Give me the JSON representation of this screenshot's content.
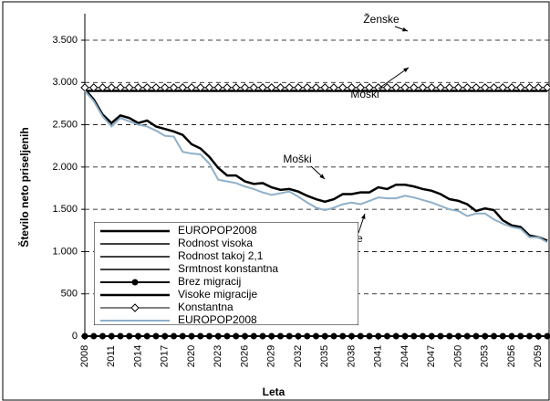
{
  "chart_data": {
    "type": "line",
    "y_label": "Število neto priseljenih",
    "x_label": "Leta",
    "xlim": [
      2008,
      2060
    ],
    "xticks": [
      2008,
      2011,
      2014,
      2017,
      2020,
      2023,
      2026,
      2029,
      2032,
      2035,
      2038,
      2041,
      2044,
      2047,
      2050,
      2053,
      2056,
      2059
    ],
    "ylim": [
      0,
      3500
    ],
    "yticks": [
      {
        "value": 0,
        "label": "0"
      },
      {
        "value": 500,
        "label": "500"
      },
      {
        "value": 1000,
        "label": "1.000"
      },
      {
        "value": 1500,
        "label": "1.500"
      },
      {
        "value": 2000,
        "label": "2.000"
      },
      {
        "value": 2500,
        "label": "2.500"
      },
      {
        "value": 3000,
        "label": "3.000"
      },
      {
        "value": 3500,
        "label": "3.500"
      }
    ],
    "grid": true,
    "legend": "lower left",
    "annotations": [
      "Ženske",
      "Moški",
      "Moški",
      "Ženske"
    ],
    "x": [
      2008,
      2009,
      2010,
      2011,
      2012,
      2013,
      2014,
      2015,
      2016,
      2017,
      2018,
      2019,
      2020,
      2021,
      2022,
      2023,
      2024,
      2025,
      2026,
      2027,
      2028,
      2029,
      2030,
      2031,
      2032,
      2033,
      2034,
      2035,
      2036,
      2037,
      2038,
      2039,
      2040,
      2041,
      2042,
      2043,
      2044,
      2045,
      2046,
      2047,
      2048,
      2049,
      2050,
      2051,
      2052,
      2053,
      2054,
      2055,
      2056,
      2057,
      2058,
      2059,
      2060
    ],
    "series": [
      {
        "name": "EUROPOP2008",
        "color": "#000000",
        "width": 2.5,
        "marker": null,
        "values": [
          2920,
          2800,
          2620,
          2520,
          2610,
          2580,
          2520,
          2550,
          2480,
          2450,
          2420,
          2380,
          2270,
          2220,
          2120,
          1990,
          1900,
          1900,
          1830,
          1800,
          1810,
          1760,
          1730,
          1740,
          1710,
          1660,
          1620,
          1590,
          1620,
          1680,
          1680,
          1700,
          1700,
          1760,
          1740,
          1790,
          1790,
          1770,
          1740,
          1720,
          1680,
          1620,
          1600,
          1560,
          1480,
          1510,
          1490,
          1370,
          1310,
          1290,
          1190,
          1170,
          1130
        ]
      },
      {
        "name": "Rodnost visoka",
        "color": "#000000",
        "width": 1.5,
        "marker": null,
        "values": [
          2920,
          2800,
          2620,
          2520,
          2610,
          2580,
          2520,
          2550,
          2480,
          2450,
          2420,
          2380,
          2270,
          2220,
          2120,
          1990,
          1900,
          1900,
          1830,
          1800,
          1810,
          1760,
          1730,
          1740,
          1710,
          1660,
          1620,
          1590,
          1620,
          1680,
          1680,
          1700,
          1700,
          1760,
          1740,
          1790,
          1790,
          1770,
          1740,
          1720,
          1680,
          1620,
          1600,
          1560,
          1480,
          1510,
          1490,
          1370,
          1310,
          1290,
          1190,
          1170,
          1130
        ]
      },
      {
        "name": "Rodnost takoj 2,1",
        "color": "#000000",
        "width": 1.5,
        "marker": null,
        "values": [
          2920,
          2800,
          2620,
          2520,
          2610,
          2580,
          2520,
          2550,
          2480,
          2450,
          2420,
          2380,
          2270,
          2220,
          2120,
          1990,
          1900,
          1900,
          1830,
          1800,
          1810,
          1760,
          1730,
          1740,
          1710,
          1660,
          1620,
          1590,
          1620,
          1680,
          1680,
          1700,
          1700,
          1760,
          1740,
          1790,
          1790,
          1770,
          1740,
          1720,
          1680,
          1620,
          1600,
          1560,
          1480,
          1510,
          1490,
          1370,
          1310,
          1290,
          1190,
          1170,
          1130
        ]
      },
      {
        "name": "Srmtnost konstantna",
        "color": "#000000",
        "width": 1.5,
        "marker": null,
        "values": [
          2920,
          2800,
          2620,
          2520,
          2610,
          2580,
          2520,
          2550,
          2480,
          2450,
          2420,
          2380,
          2270,
          2220,
          2120,
          1990,
          1900,
          1900,
          1830,
          1800,
          1810,
          1760,
          1730,
          1740,
          1710,
          1660,
          1620,
          1590,
          1620,
          1680,
          1680,
          1700,
          1700,
          1760,
          1740,
          1790,
          1790,
          1770,
          1740,
          1720,
          1680,
          1620,
          1600,
          1560,
          1480,
          1510,
          1490,
          1370,
          1310,
          1290,
          1190,
          1170,
          1130
        ]
      },
      {
        "name": "Brez migracij",
        "color": "#000000",
        "width": 2,
        "marker": "circle",
        "values": [
          0,
          0,
          0,
          0,
          0,
          0,
          0,
          0,
          0,
          0,
          0,
          0,
          0,
          0,
          0,
          0,
          0,
          0,
          0,
          0,
          0,
          0,
          0,
          0,
          0,
          0,
          0,
          0,
          0,
          0,
          0,
          0,
          0,
          0,
          0,
          0,
          0,
          0,
          0,
          0,
          0,
          0,
          0,
          0,
          0,
          0,
          0,
          0,
          0,
          0,
          0,
          0,
          0
        ]
      },
      {
        "name": "Visoke migracije",
        "color": "#000000",
        "width": 2.5,
        "marker": null,
        "values": [
          2900,
          2900,
          2900,
          2900,
          2900,
          2900,
          2900,
          2900,
          2900,
          2900,
          2900,
          2900,
          2900,
          2900,
          2900,
          2900,
          2900,
          2900,
          2900,
          2900,
          2900,
          2900,
          2900,
          2900,
          2900,
          2900,
          2900,
          2900,
          2900,
          2900,
          2900,
          2900,
          2900,
          2900,
          2900,
          2900,
          2900,
          2900,
          2900,
          2900,
          2900,
          2900,
          2900,
          2900,
          2900,
          2900,
          2900,
          2900,
          2900,
          2900,
          2900,
          2900,
          2900
        ]
      },
      {
        "name": "Konstantna",
        "color": "#000000",
        "width": 1,
        "marker": "diamond",
        "values": [
          2940,
          2940,
          2940,
          2940,
          2940,
          2940,
          2940,
          2940,
          2940,
          2940,
          2940,
          2940,
          2940,
          2940,
          2940,
          2940,
          2940,
          2940,
          2940,
          2940,
          2940,
          2940,
          2940,
          2940,
          2940,
          2940,
          2940,
          2940,
          2940,
          2940,
          2940,
          2940,
          2940,
          2940,
          2940,
          2940,
          2940,
          2940,
          2940,
          2940,
          2940,
          2940,
          2940,
          2940,
          2940,
          2940,
          2940,
          2940,
          2940,
          2940,
          2940,
          2940,
          2940
        ]
      },
      {
        "name": "EUROPOP2008",
        "color": "#8fb0c8",
        "width": 2,
        "marker": null,
        "values": [
          2900,
          2780,
          2600,
          2480,
          2580,
          2540,
          2500,
          2480,
          2430,
          2370,
          2360,
          2180,
          2160,
          2150,
          2040,
          1850,
          1830,
          1810,
          1770,
          1740,
          1700,
          1670,
          1690,
          1710,
          1650,
          1580,
          1520,
          1490,
          1520,
          1560,
          1580,
          1560,
          1600,
          1640,
          1630,
          1630,
          1660,
          1640,
          1610,
          1580,
          1540,
          1500,
          1480,
          1420,
          1450,
          1450,
          1380,
          1330,
          1290,
          1270,
          1170,
          1170,
          1110
        ]
      }
    ]
  }
}
